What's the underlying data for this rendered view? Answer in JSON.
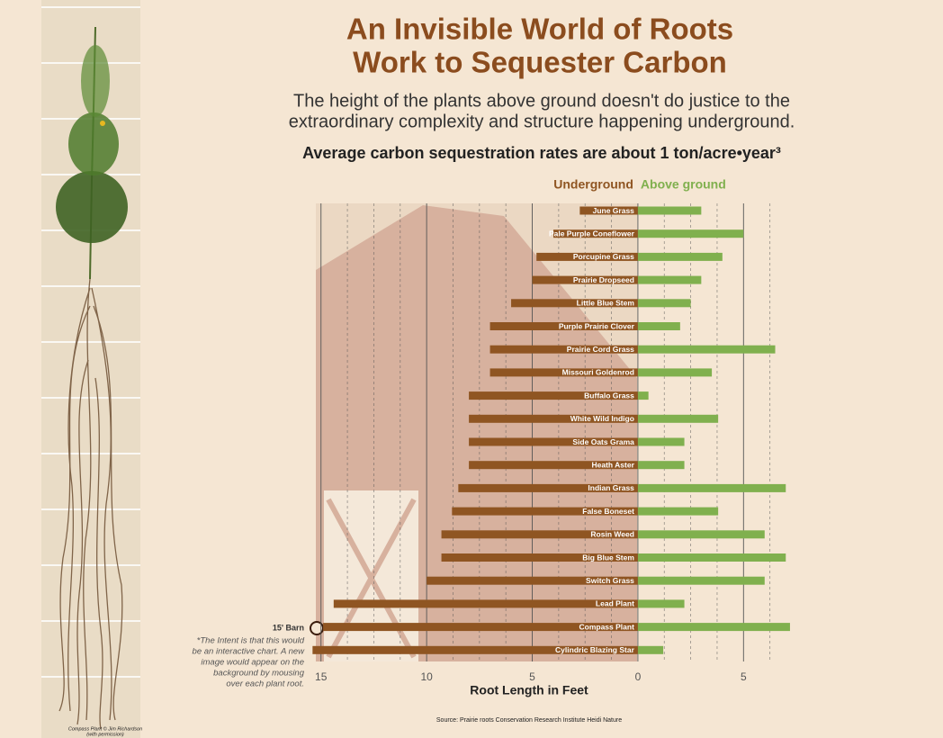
{
  "chart_data": {
    "type": "diverging_bar",
    "title": [
      "An Invisible World of Roots",
      "Work to Sequester Carbon"
    ],
    "subtitle": [
      "The height of the plants above ground doesn't do justice to the",
      "extraordinary complexity and structure happening underground."
    ],
    "heading": "Average carbon sequestration rates are about 1 ton/acre•year³",
    "x_label": "Root Length in Feet",
    "annotation": "15' Barn",
    "note": [
      "*The Intent is that this would",
      "be an interactive chart. A new",
      "image would appear on the",
      "background by mousing",
      "over each plant root."
    ],
    "photo_credit": [
      "Compass Plant © Jim Richardson",
      "(with permission)"
    ],
    "source": "Source: Prairie roots Conservation Research Institute Heidi Nature",
    "categories": [
      "June Grass",
      "Pale Purple Coneflower",
      "Porcupine Grass",
      "Prairie Dropseed",
      "Little Blue Stem",
      "Purple Prairie Clover",
      "Prairie Cord Grass",
      "Missouri Goldenrod",
      "Buffalo Grass",
      "White Wild Indigo",
      "Side Oats Grama",
      "Heath Aster",
      "Indian Grass",
      "False Boneset",
      "Rosin Weed",
      "Big Blue Stem",
      "Switch Grass",
      "Lead Plant",
      "Compass Plant",
      "Cylindric Blazing Star"
    ],
    "series": [
      {
        "name": "Underground",
        "color": "#8f5522",
        "values": [
          -2.75,
          -4,
          -4.8,
          -5,
          -6,
          -7,
          -7,
          -7,
          -8,
          -8,
          -8,
          -8,
          -8.5,
          -8.8,
          -9.3,
          -9.3,
          -10,
          -14.4,
          -14.9,
          -15.4
        ]
      },
      {
        "name": "Above ground",
        "color": "#80b04e",
        "values": [
          3,
          5,
          4,
          3,
          2.5,
          2,
          6.5,
          3.5,
          0.5,
          3.8,
          2.2,
          2.2,
          7,
          3.8,
          6,
          7,
          6,
          2.2,
          7.2,
          1.2
        ]
      }
    ],
    "xlim": [
      -15.5,
      7.5
    ],
    "xticks": [
      {
        "value": -15,
        "label": "15"
      },
      {
        "value": -10,
        "label": "10"
      },
      {
        "value": -5,
        "label": "5"
      },
      0,
      5
    ],
    "xminorticks": [
      -13.75,
      -12.5,
      -11.25,
      -8.75,
      -7.5,
      -6.25,
      -3.75,
      -2.5,
      -1.25,
      1.25,
      2.5,
      3.75,
      6.25
    ],
    "grid": true
  }
}
